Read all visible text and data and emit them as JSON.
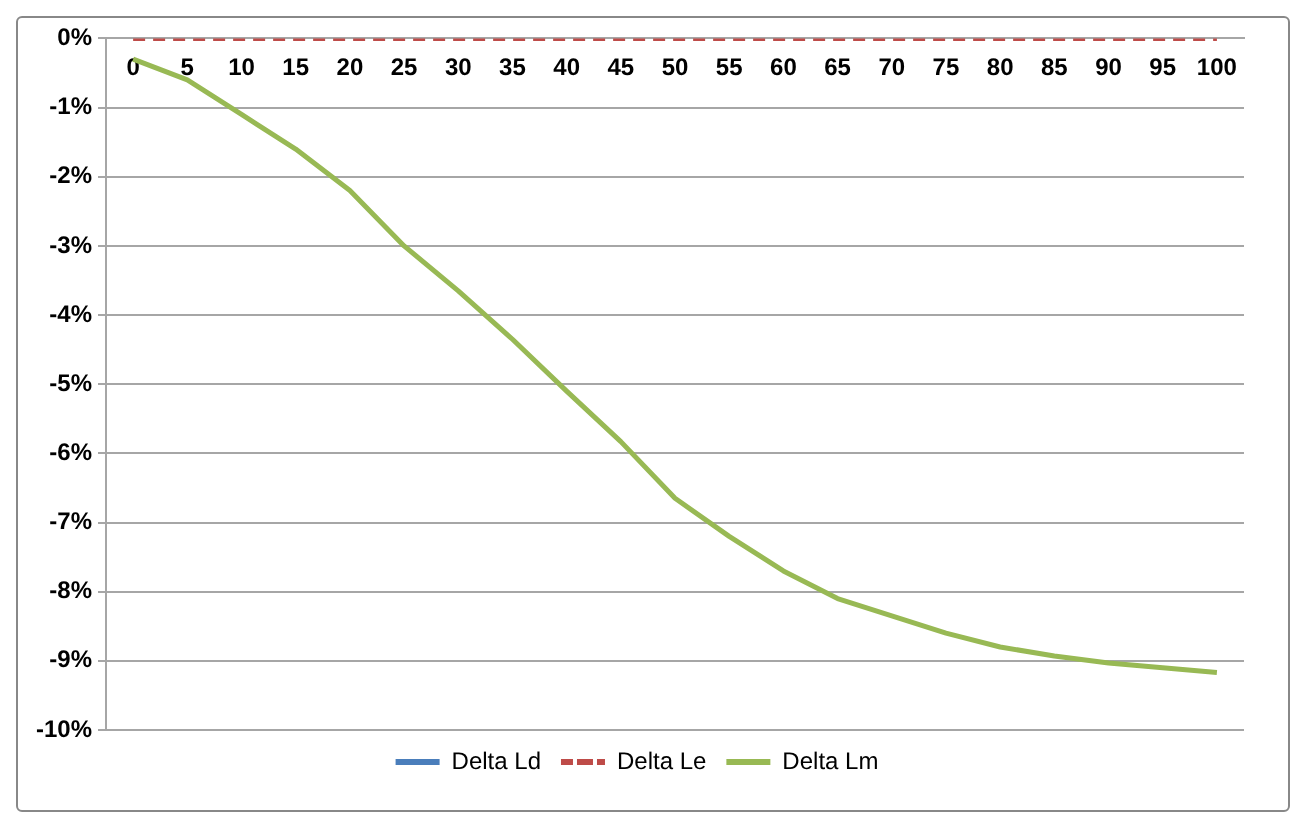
{
  "chart_data": {
    "type": "line",
    "categories": [
      "0",
      "5",
      "10",
      "15",
      "20",
      "25",
      "30",
      "35",
      "40",
      "45",
      "50",
      "55",
      "60",
      "65",
      "70",
      "75",
      "80",
      "85",
      "90",
      "95",
      "100"
    ],
    "series": [
      {
        "name": "Delta Ld",
        "color": "#4a7ebb",
        "values": [
          null,
          null,
          null,
          null,
          null,
          null,
          null,
          null,
          null,
          null,
          null,
          null,
          null,
          null,
          null,
          null,
          null,
          null,
          null,
          null,
          null
        ]
      },
      {
        "name": "Delta Le",
        "color": "#be4b48",
        "line_style": "dashed",
        "values": [
          0,
          0,
          0,
          0,
          0,
          0,
          0,
          0,
          0,
          0,
          0,
          0,
          0,
          0,
          0,
          0,
          0,
          0,
          0,
          0,
          0
        ]
      },
      {
        "name": "Delta Lm",
        "color": "#98b954",
        "values": [
          -0.3,
          -0.6,
          -1.1,
          -1.6,
          -2.2,
          -3.0,
          -3.65,
          -4.35,
          -5.1,
          -5.83,
          -6.65,
          -7.2,
          -7.7,
          -8.1,
          -8.35,
          -8.6,
          -8.8,
          -8.93,
          -9.03,
          -9.1,
          -9.17
        ]
      }
    ],
    "ylim": [
      -10,
      0
    ],
    "yticks": [
      {
        "value": 0,
        "label": "0%"
      },
      {
        "value": -1,
        "label": "-1%"
      },
      {
        "value": -2,
        "label": "-2%"
      },
      {
        "value": -3,
        "label": "-3%"
      },
      {
        "value": -4,
        "label": "-4%"
      },
      {
        "value": -5,
        "label": "-5%"
      },
      {
        "value": -6,
        "label": "-6%"
      },
      {
        "value": -7,
        "label": "-7%"
      },
      {
        "value": -8,
        "label": "-8%"
      },
      {
        "value": -9,
        "label": "-9%"
      },
      {
        "value": -10,
        "label": "-10%"
      }
    ],
    "grid": "y",
    "legend": "bottom",
    "marker": "none"
  }
}
